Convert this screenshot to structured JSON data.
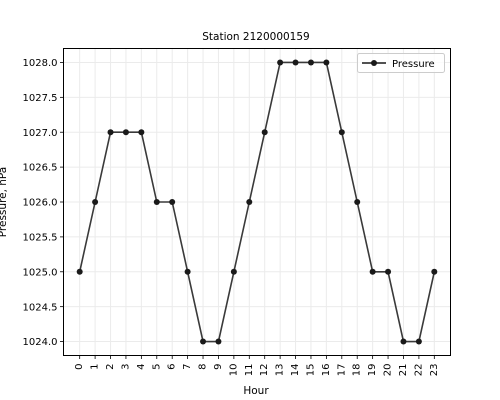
{
  "chart_data": {
    "type": "line",
    "title": "Station 2120000159",
    "xlabel": "Hour",
    "ylabel": "Pressure, hPa",
    "x": [
      0,
      1,
      2,
      3,
      4,
      5,
      6,
      7,
      8,
      9,
      10,
      11,
      12,
      13,
      14,
      15,
      16,
      17,
      18,
      19,
      20,
      21,
      22,
      23
    ],
    "xticks": [
      "0",
      "1",
      "2",
      "3",
      "4",
      "5",
      "6",
      "7",
      "8",
      "9",
      "10",
      "11",
      "12",
      "13",
      "14",
      "15",
      "16",
      "17",
      "18",
      "19",
      "20",
      "21",
      "22",
      "23"
    ],
    "yticks": [
      "1024.0",
      "1024.5",
      "1025.0",
      "1025.5",
      "1026.0",
      "1026.5",
      "1027.0",
      "1027.5",
      "1028.0"
    ],
    "ylim": [
      1023.8,
      1028.2
    ],
    "series": [
      {
        "name": "Pressure",
        "values": [
          1025,
          1026,
          1027,
          1027,
          1027,
          1026,
          1026,
          1025,
          1024,
          1024,
          1025,
          1026,
          1027,
          1028,
          1028,
          1028,
          1028,
          1027,
          1026,
          1025,
          1025,
          1024,
          1024,
          1025
        ],
        "color": "#3a3a3a",
        "marker_color": "#1a1a1a"
      }
    ],
    "grid": true,
    "legend": "top-right"
  }
}
